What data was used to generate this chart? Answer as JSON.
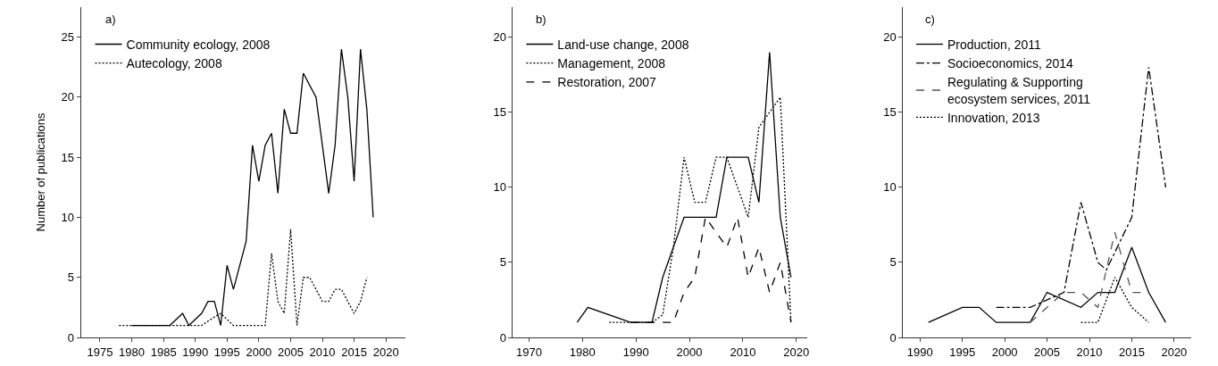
{
  "chart_data": [
    {
      "type": "line",
      "title": "a)",
      "ylabel": "Number of publications",
      "xlim": [
        1972,
        2023
      ],
      "xticks": [
        1975,
        1980,
        1985,
        1990,
        1995,
        2000,
        2005,
        2010,
        2015,
        2020
      ],
      "ylim": [
        0,
        27.5
      ],
      "yticks": [
        0,
        5,
        10,
        15,
        20,
        25
      ],
      "legend": "top left",
      "marker": "none",
      "series": [
        {
          "name": "Community ecology, 2008",
          "color": "#000000",
          "line_style": "solid",
          "x": [
            1980,
            1986,
            1988,
            1989,
            1991,
            1992,
            1993,
            1994,
            1995,
            1996,
            1998,
            1999,
            2000,
            2001,
            2002,
            2003,
            2004,
            2005,
            2006,
            2007,
            2009,
            2011,
            2012,
            2013,
            2014,
            2015,
            2016,
            2017,
            2018
          ],
          "values": [
            1,
            1,
            2,
            1,
            2,
            3,
            3,
            1,
            6,
            4,
            8,
            16,
            13,
            16,
            17,
            12,
            19,
            17,
            17,
            22,
            20,
            12,
            16,
            24,
            20,
            13,
            24,
            19,
            10
          ]
        },
        {
          "name": "Autecology, 2008",
          "color": "#000000",
          "line_style": "dotted",
          "x": [
            1978,
            1991,
            1993,
            1994,
            1996,
            2001,
            2002,
            2003,
            2004,
            2005,
            2006,
            2007,
            2008,
            2010,
            2011,
            2012,
            2013,
            2015,
            2016,
            2017
          ],
          "values": [
            1,
            1,
            1.7,
            2,
            1,
            1,
            7,
            3,
            2,
            9,
            1,
            5,
            5,
            3,
            3,
            4,
            4,
            2,
            3,
            5
          ]
        }
      ]
    },
    {
      "type": "line",
      "title": "b)",
      "xlim": [
        1967,
        2022
      ],
      "xticks": [
        1970,
        1980,
        1990,
        2000,
        2010,
        2020
      ],
      "ylim": [
        0,
        22
      ],
      "yticks": [
        0,
        5,
        10,
        15,
        20
      ],
      "legend": "top left",
      "marker": "none",
      "series": [
        {
          "name": "Land-use change, 2008",
          "color": "#000000",
          "line_style": "solid",
          "x": [
            1979,
            1981,
            1989,
            1993,
            1995,
            1997,
            1999,
            2001,
            2003,
            2005,
            2007,
            2009,
            2011,
            2013,
            2015,
            2017,
            2019
          ],
          "values": [
            1,
            2,
            1,
            1,
            4,
            6,
            8,
            8,
            8,
            8,
            12,
            12,
            12,
            9,
            19,
            8,
            4
          ]
        },
        {
          "name": "Management, 2008",
          "color": "#000000",
          "line_style": "dotted",
          "x": [
            1985,
            1989,
            1993,
            1995,
            1997,
            1999,
            2001,
            2003,
            2005,
            2007,
            2009,
            2011,
            2013,
            2015,
            2017,
            2019
          ],
          "values": [
            1,
            1,
            1,
            1.5,
            6,
            12,
            9,
            9,
            12,
            12,
            10,
            8,
            14,
            15,
            16,
            1
          ]
        },
        {
          "name": "Restoration, 2007",
          "color": "#000000",
          "line_style": "dashed",
          "x": [
            1989,
            1997,
            1999,
            2001,
            2003,
            2005,
            2007,
            2009,
            2011,
            2013,
            2015,
            2017,
            2019
          ],
          "values": [
            1,
            1,
            3,
            4,
            8,
            7,
            6,
            8,
            4,
            6,
            3,
            5,
            1
          ]
        }
      ]
    },
    {
      "type": "line",
      "title": "c)",
      "xlim": [
        1988,
        2022
      ],
      "xticks": [
        1990,
        1995,
        2000,
        2005,
        2010,
        2015,
        2020
      ],
      "ylim": [
        0,
        22
      ],
      "yticks": [
        0,
        5,
        10,
        15,
        20
      ],
      "legend": "top left",
      "marker": "none",
      "series": [
        {
          "name": "Production, 2011",
          "color": "#000000",
          "line_style": "solid",
          "x": [
            1991,
            1995,
            1997,
            1999,
            2003,
            2005,
            2009,
            2011,
            2013,
            2015,
            2017,
            2019
          ],
          "values": [
            1,
            2,
            2,
            1,
            1,
            3,
            2,
            3,
            3,
            6,
            3,
            1
          ]
        },
        {
          "name": "Socioeconomics, 2014",
          "color": "#000000",
          "line_style": "dashdot",
          "x": [
            1999,
            2003,
            2007,
            2009,
            2011,
            2012,
            2015,
            2017,
            2019
          ],
          "values": [
            2,
            2,
            3,
            9,
            5,
            4.5,
            8,
            18,
            10
          ]
        },
        {
          "name": "Regulating & Supporting ecosystem services, 2011",
          "color": "#555555",
          "line_style": "dashed",
          "x": [
            2003,
            2005,
            2007,
            2009,
            2011,
            2013,
            2015,
            2017
          ],
          "values": [
            1,
            2,
            3,
            3,
            2,
            7,
            3,
            3
          ]
        },
        {
          "name": "Innovation, 2013",
          "color": "#000000",
          "line_style": "dotted",
          "x": [
            2009,
            2011,
            2013,
            2015,
            2017
          ],
          "values": [
            1,
            1,
            4,
            2,
            1
          ]
        }
      ]
    }
  ]
}
